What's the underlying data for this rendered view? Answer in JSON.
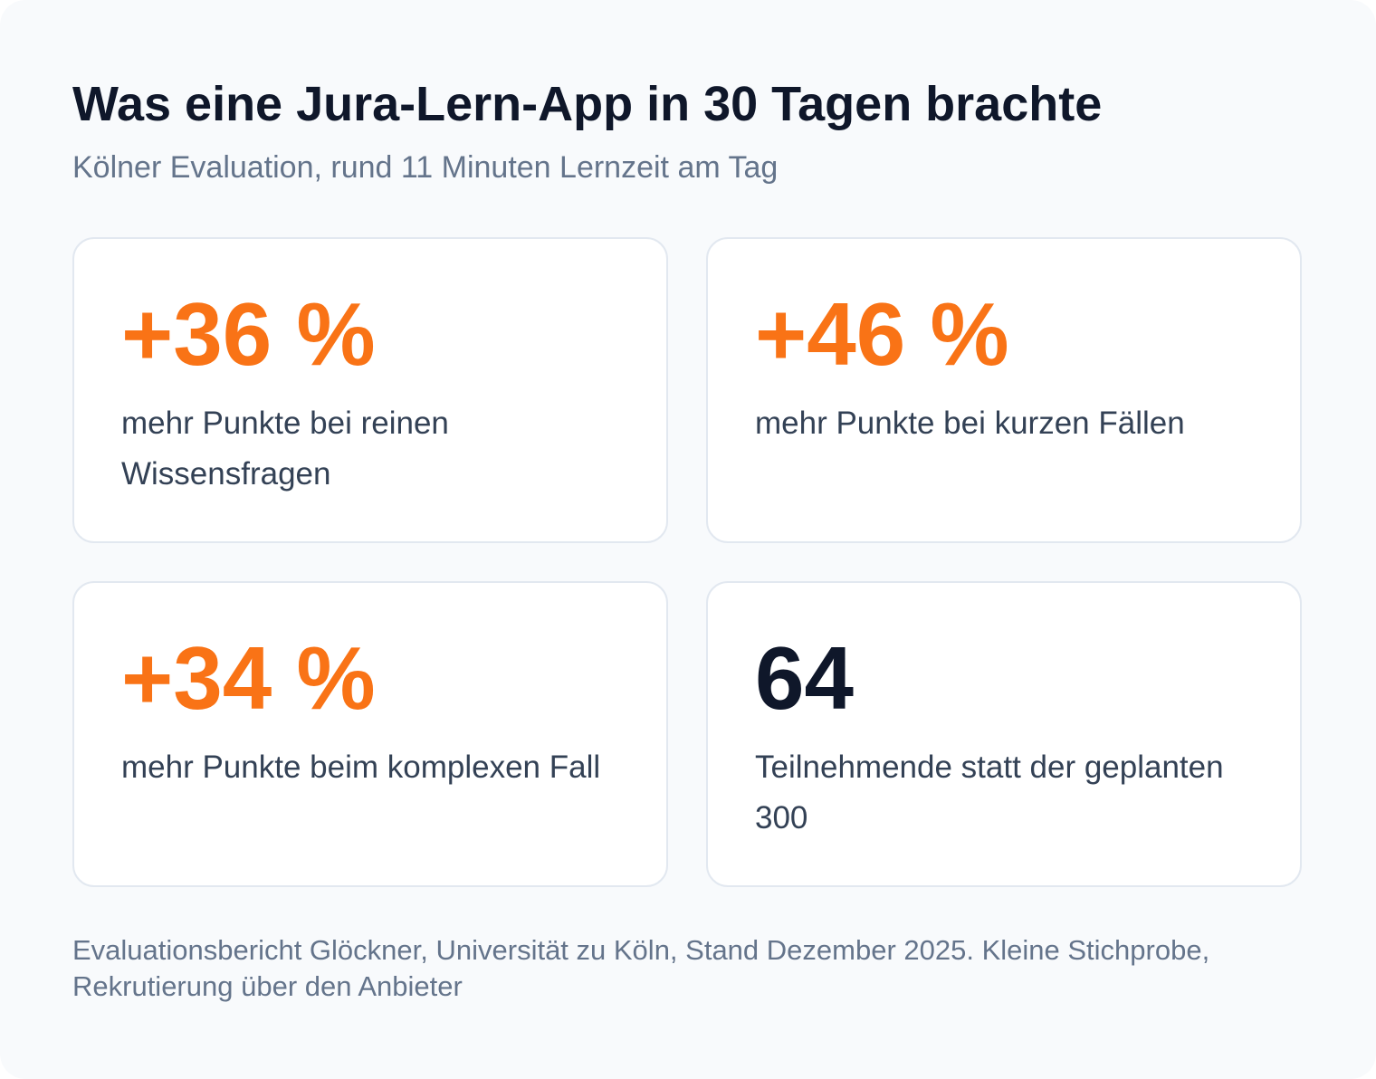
{
  "header": {
    "title": "Was eine Jura-Lern-App in 30 Tagen brachte",
    "subtitle": "Kölner Evaluation, rund 11 Minuten Lernzeit am Tag"
  },
  "stats": [
    {
      "value": "+36 %",
      "label": "mehr Punkte bei reinen Wissensfragen",
      "color": "#f97316"
    },
    {
      "value": "+46 %",
      "label": "mehr Punkte bei kurzen Fällen",
      "color": "#f97316"
    },
    {
      "value": "+34 %",
      "label": "mehr Punkte beim komplexen Fall",
      "color": "#f97316"
    },
    {
      "value": "64",
      "label": "Teilnehmende statt der geplanten 300",
      "color": "#0f172a"
    }
  ],
  "footnote": "Evaluationsbericht Glöckner, Universität zu Köln, Stand Dezember 2025. Kleine Stichprobe, Rekrutierung über den Anbieter"
}
